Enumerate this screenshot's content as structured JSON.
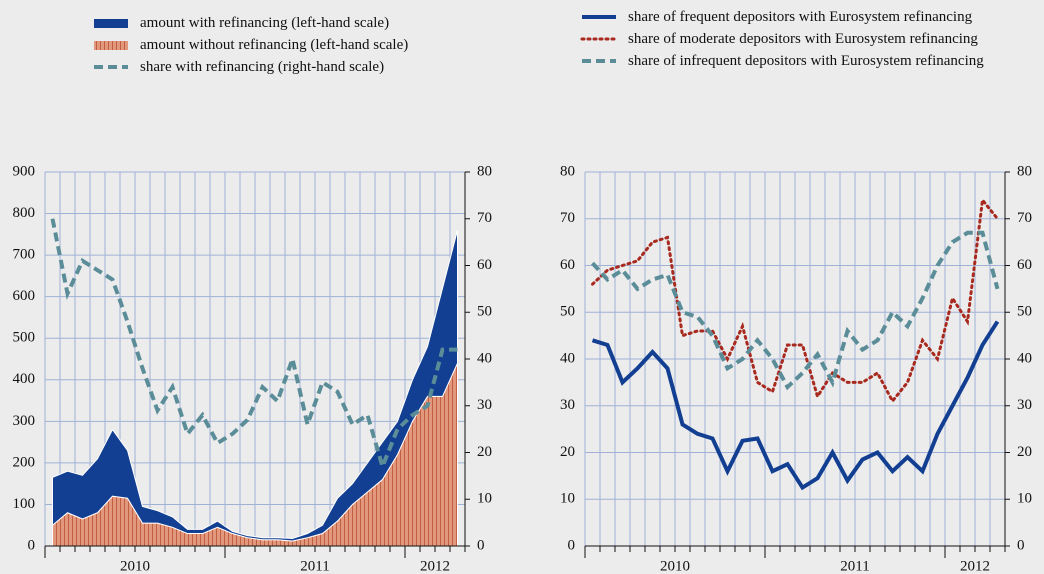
{
  "chart_data": [
    {
      "type": "area",
      "categories": [
        null,
        null,
        null,
        null,
        null,
        null,
        "2010",
        null,
        null,
        null,
        null,
        null,
        null,
        null,
        null,
        null,
        null,
        null,
        "2011",
        null,
        null,
        null,
        null,
        null,
        null,
        null,
        "2012",
        null
      ],
      "ylim": [
        0,
        900
      ],
      "yticks": [
        0,
        100,
        200,
        300,
        400,
        500,
        600,
        700,
        800,
        900
      ],
      "y2lim": [
        0,
        80
      ],
      "y2ticks": [
        0,
        10,
        20,
        30,
        40,
        50,
        60,
        70,
        80
      ],
      "grid": true,
      "series": [
        {
          "name": "amount without refinancing (left-hand scale)",
          "type": "area",
          "color": "#e2987c",
          "hatch": "#c25f42",
          "values": [
            50,
            80,
            65,
            80,
            120,
            115,
            55,
            55,
            45,
            30,
            30,
            45,
            30,
            20,
            15,
            15,
            12,
            20,
            30,
            60,
            100,
            130,
            160,
            220,
            300,
            360,
            360,
            440
          ]
        },
        {
          "name": "amount with refinancing (left-hand scale)",
          "type": "area",
          "color": "#123f91",
          "values": [
            115,
            100,
            105,
            130,
            160,
            115,
            40,
            30,
            25,
            10,
            10,
            15,
            5,
            5,
            5,
            5,
            6,
            10,
            20,
            55,
            50,
            70,
            90,
            80,
            100,
            120,
            260,
            320
          ]
        },
        {
          "name": "share with refinancing (right-hand scale)",
          "type": "line",
          "axis": "y2",
          "color": "#5b8d99",
          "dash": "dashed",
          "values": [
            70,
            54,
            61,
            59,
            57,
            48,
            38,
            29,
            34,
            24,
            28,
            22,
            24,
            27,
            34,
            31,
            40,
            26,
            35,
            33,
            26,
            28,
            17,
            25,
            28,
            30,
            42,
            42
          ]
        }
      ],
      "legend_order": [
        1,
        0,
        2
      ]
    },
    {
      "type": "line",
      "categories": [
        null,
        null,
        null,
        null,
        null,
        null,
        "2010",
        null,
        null,
        null,
        null,
        null,
        null,
        null,
        null,
        null,
        null,
        null,
        "2011",
        null,
        null,
        null,
        null,
        null,
        null,
        null,
        "2012",
        null
      ],
      "ylim": [
        0,
        80
      ],
      "yticks": [
        0,
        10,
        20,
        30,
        40,
        50,
        60,
        70,
        80
      ],
      "y2lim": [
        0,
        80
      ],
      "y2ticks": [
        0,
        10,
        20,
        30,
        40,
        50,
        60,
        70,
        80
      ],
      "grid": true,
      "series": [
        {
          "name": "share of frequent depositors with Eurosystem refinancing",
          "type": "line",
          "color": "#123f91",
          "dash": "solid",
          "values": [
            44,
            43,
            35,
            38,
            41.5,
            38,
            26,
            24,
            23,
            16,
            22.5,
            23,
            16,
            17.5,
            12.5,
            14.5,
            20,
            14,
            18.5,
            20,
            16,
            19,
            16,
            24,
            30,
            36,
            43,
            48
          ]
        },
        {
          "name": "share of moderate depositors with Eurosystem refinancing",
          "type": "line",
          "color": "#a8291e",
          "dash": "dotted",
          "values": [
            56,
            59,
            60,
            61,
            65,
            66,
            45,
            46,
            46,
            40,
            47,
            35,
            33,
            43,
            43,
            32,
            37,
            35,
            35,
            37,
            31,
            35,
            44,
            40,
            53,
            48,
            74,
            70
          ]
        },
        {
          "name": "share of infrequent depositors with Eurosystem refinancing",
          "type": "line",
          "color": "#5b8d99",
          "dash": "dashed",
          "values": [
            60.5,
            57,
            59,
            55,
            57,
            58,
            50,
            49,
            45,
            38,
            40,
            44,
            40,
            34,
            37,
            41,
            35,
            46,
            42,
            44,
            50,
            47,
            53,
            60,
            65,
            67,
            67,
            55
          ]
        }
      ],
      "legend_order": [
        0,
        1,
        2
      ]
    }
  ]
}
